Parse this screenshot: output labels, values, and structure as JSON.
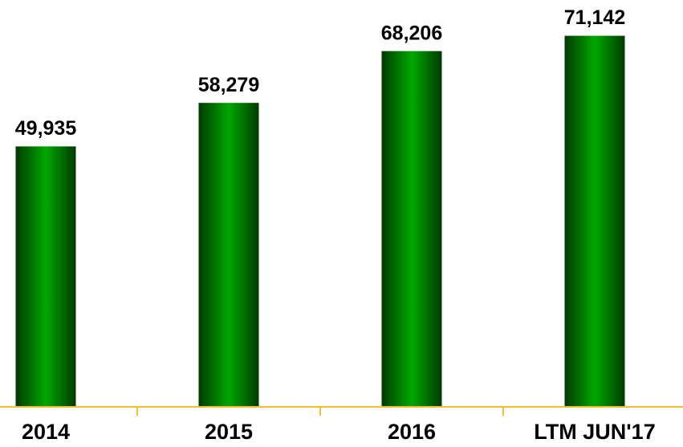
{
  "chart_data": {
    "type": "bar",
    "categories": [
      "2014",
      "2015",
      "2016",
      "LTM JUN'17"
    ],
    "values": [
      49935,
      58279,
      68206,
      71142
    ],
    "value_labels": [
      "49,935",
      "58,279",
      "68,206",
      "71,142"
    ],
    "color": "#009900",
    "ylim": [
      0,
      78000
    ]
  }
}
